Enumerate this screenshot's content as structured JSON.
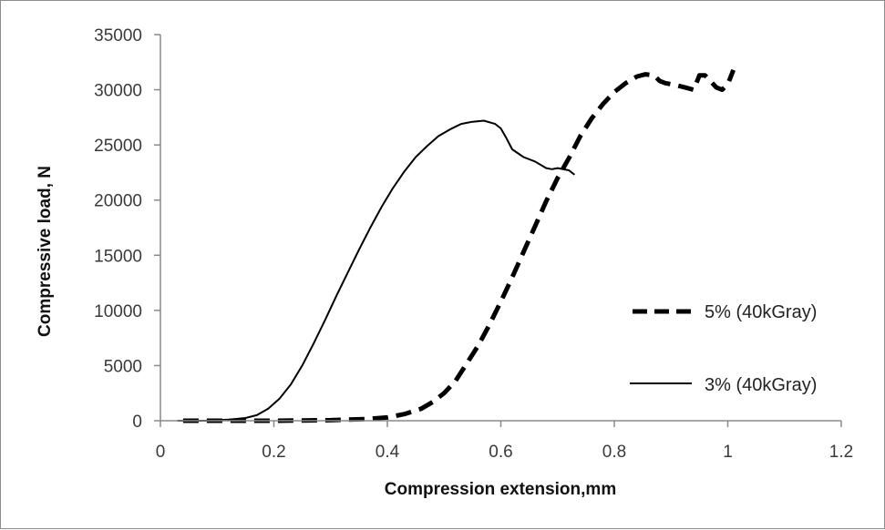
{
  "chart_data": {
    "type": "line",
    "title": "",
    "xlabel": "Compression extension,mm",
    "ylabel": "Compressive load, N",
    "xlim": [
      0,
      1.2
    ],
    "ylim": [
      0,
      35000
    ],
    "x_ticks": [
      "0",
      "0.2",
      "0.4",
      "0.6",
      "0.8",
      "1",
      "1.2"
    ],
    "y_ticks": [
      "0",
      "5000",
      "10000",
      "15000",
      "20000",
      "25000",
      "30000",
      "35000"
    ],
    "grid": false,
    "legend_position": "right",
    "series": [
      {
        "name": "5% (40kGray)",
        "style": "dashed",
        "color": "#000000",
        "x": [
          0.04,
          0.1,
          0.2,
          0.3,
          0.36,
          0.4,
          0.43,
          0.46,
          0.48,
          0.5,
          0.52,
          0.54,
          0.56,
          0.58,
          0.6,
          0.62,
          0.64,
          0.66,
          0.68,
          0.7,
          0.72,
          0.74,
          0.76,
          0.78,
          0.8,
          0.82,
          0.84,
          0.855,
          0.87,
          0.88,
          0.89,
          0.9,
          0.91,
          0.925,
          0.94,
          0.95,
          0.96,
          0.98,
          0.99,
          1.0,
          1.01
        ],
        "y": [
          0,
          0,
          0,
          50,
          150,
          300,
          600,
          1100,
          1700,
          2500,
          3600,
          5200,
          6800,
          8700,
          10800,
          13000,
          15300,
          17600,
          19900,
          22000,
          23800,
          25800,
          27400,
          28700,
          29800,
          30600,
          31200,
          31400,
          31300,
          30800,
          30600,
          30500,
          30400,
          30200,
          30000,
          31300,
          31300,
          30200,
          30000,
          30500,
          31800
        ]
      },
      {
        "name": "3% (40kGray)",
        "style": "solid",
        "color": "#000000",
        "x": [
          0.03,
          0.08,
          0.12,
          0.15,
          0.17,
          0.19,
          0.21,
          0.23,
          0.25,
          0.27,
          0.29,
          0.31,
          0.33,
          0.35,
          0.37,
          0.39,
          0.41,
          0.43,
          0.45,
          0.47,
          0.49,
          0.51,
          0.53,
          0.55,
          0.57,
          0.59,
          0.6,
          0.61,
          0.62,
          0.64,
          0.66,
          0.68,
          0.69,
          0.7,
          0.72,
          0.73
        ],
        "y": [
          0,
          0,
          100,
          250,
          500,
          1100,
          2000,
          3300,
          5000,
          7000,
          9100,
          11300,
          13400,
          15500,
          17500,
          19400,
          21100,
          22600,
          23900,
          24900,
          25800,
          26400,
          26900,
          27100,
          27200,
          26900,
          26500,
          25600,
          24600,
          23900,
          23500,
          22900,
          22800,
          22900,
          22700,
          22300
        ]
      }
    ]
  }
}
